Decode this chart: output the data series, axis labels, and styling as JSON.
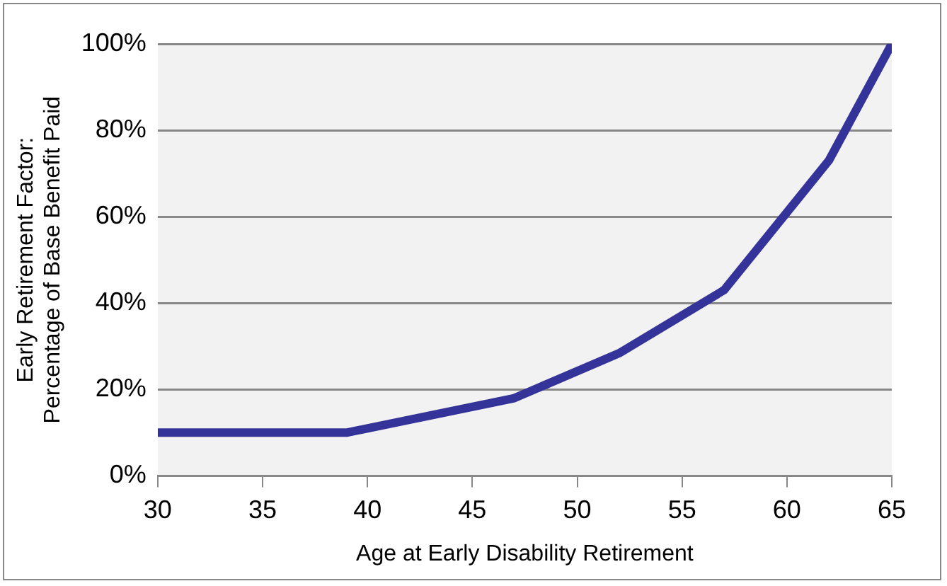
{
  "chart_data": {
    "type": "line",
    "xlabel": "Age at Early Disability Retirement",
    "ylabel": "Early Retirement Factor:\nPercentage of Base Benefit Paid",
    "series": [
      {
        "color": "#333399",
        "x": [
          30,
          39,
          47,
          52,
          57,
          62,
          65
        ],
        "values": [
          10,
          10,
          18,
          28.4,
          43,
          73,
          100
        ]
      }
    ],
    "xlim": [
      30,
      65
    ],
    "xticks": [
      30,
      35,
      40,
      45,
      50,
      55,
      60,
      65
    ],
    "ylim": [
      0,
      100
    ],
    "yticks": [
      {
        "value": 0,
        "label": "0%"
      },
      {
        "value": 20,
        "label": "20%"
      },
      {
        "value": 40,
        "label": "40%"
      },
      {
        "value": 60,
        "label": "60%"
      },
      {
        "value": 80,
        "label": "80%"
      },
      {
        "value": 100,
        "label": "100%"
      }
    ],
    "grid": "y",
    "legend": false,
    "marker": "none",
    "line_style": "solid"
  }
}
